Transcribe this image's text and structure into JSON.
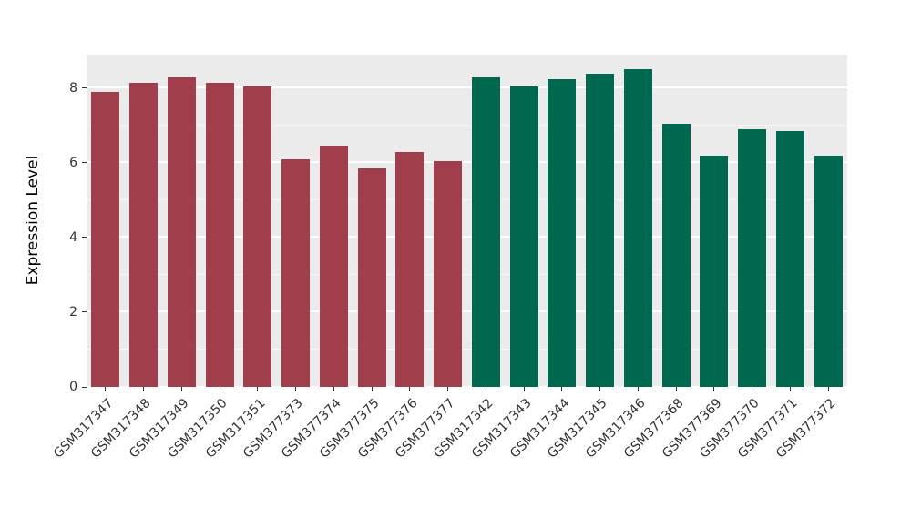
{
  "chart_data": {
    "type": "bar",
    "title": "",
    "xlabel": "",
    "ylabel": "Expression Level",
    "categories": [
      "GSM317347",
      "GSM317348",
      "GSM317349",
      "GSM317350",
      "GSM317351",
      "GSM377373",
      "GSM377374",
      "GSM377375",
      "GSM377376",
      "GSM377377",
      "GSM317342",
      "GSM317343",
      "GSM317344",
      "GSM317345",
      "GSM317346",
      "GSM377368",
      "GSM377369",
      "GSM377370",
      "GSM377371",
      "GSM377372"
    ],
    "values": [
      7.9,
      8.15,
      8.3,
      8.15,
      8.05,
      6.1,
      6.45,
      5.85,
      6.3,
      6.05,
      8.3,
      8.05,
      8.25,
      8.4,
      8.5,
      7.05,
      6.2,
      6.9,
      6.85,
      6.2
    ],
    "group_split_index": 10,
    "colors": {
      "group1": "#A13E4B",
      "group2": "#00684E"
    },
    "yticks": [
      0,
      2,
      4,
      6,
      8
    ],
    "ytick_labels": [
      "0",
      "2",
      "4",
      "6",
      "8"
    ],
    "ylim": [
      0,
      8.9
    ],
    "bar_width_fraction": 0.74,
    "panel_background": "#EBEBEB",
    "grid_color": "#FFFFFF",
    "legend": "none"
  }
}
